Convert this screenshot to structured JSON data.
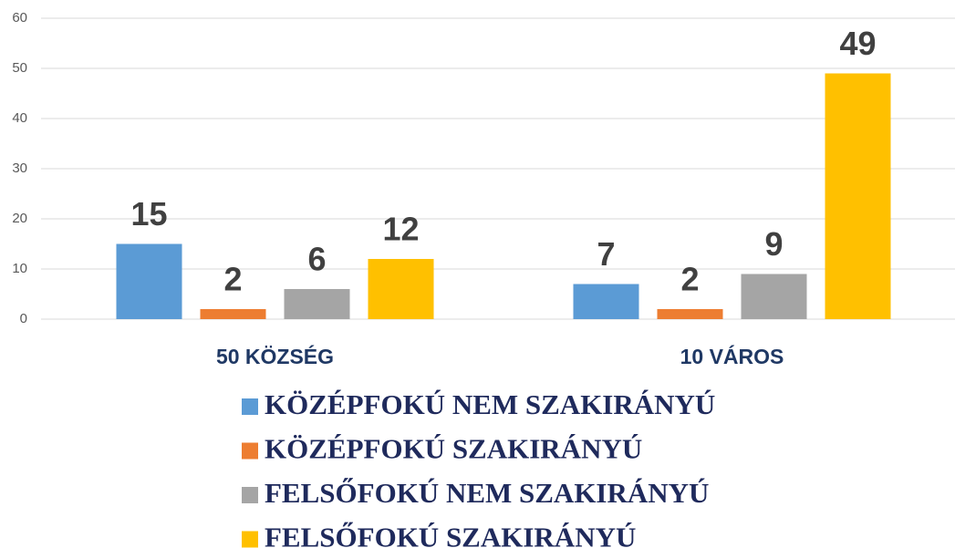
{
  "chart_data": {
    "type": "bar",
    "categories": [
      "50 KÖZSÉG",
      "10 VÁROS"
    ],
    "series": [
      {
        "name": "KÖZÉPFOKÚ NEM SZAKIRÁNYÚ",
        "color": "#5b9bd5",
        "values": [
          15,
          7
        ]
      },
      {
        "name": "KÖZÉPFOKÚ SZAKIRÁNYÚ",
        "color": "#ed7d31",
        "values": [
          2,
          2
        ]
      },
      {
        "name": "FELSŐFOKÚ NEM SZAKIRÁNYÚ",
        "color": "#a5a5a5",
        "values": [
          6,
          9
        ]
      },
      {
        "name": "FELSŐFOKÚ SZAKIRÁNYÚ",
        "color": "#ffc000",
        "values": [
          12,
          49
        ]
      }
    ],
    "ylim": [
      0,
      60
    ],
    "yticks": [
      0,
      10,
      20,
      30,
      40,
      50,
      60
    ],
    "grid": true,
    "legend": "bottom"
  }
}
